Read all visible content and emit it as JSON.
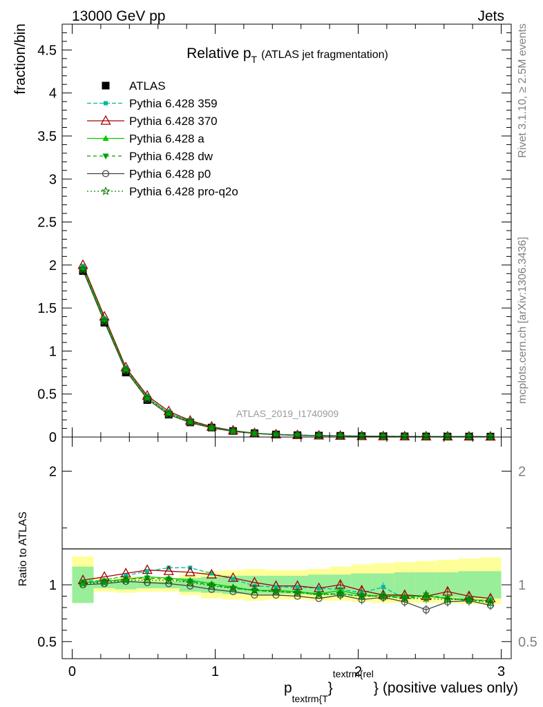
{
  "header": {
    "left": "13000 GeV pp",
    "right": "Jets"
  },
  "side_labels": {
    "rivet": "Rivet 3.1.10, ≥ 2.5M events",
    "mcplots": "mcplots.cern.ch [arXiv:1306.3436]"
  },
  "chart_data": {
    "type": "line",
    "title_main": "Relative p",
    "title_sub": "T",
    "title_extra": "(ATLAS jet fragmentation)",
    "watermark": "ATLAS_2019_I1740909",
    "ylabel": "fraction/bin",
    "ratio_ylabel": "Ratio to ATLAS",
    "xlabel_p": "p",
    "xlabel_sub": "textrm{T",
    "xlabel_brace1": "}",
    "xlabel_sup": "textrm{rel",
    "xlabel_brace2": "}",
    "xlabel_rest": "(positive values only)",
    "xlim": [
      -0.07,
      3.07
    ],
    "ylim": [
      0,
      4.8
    ],
    "ratio_ylim": [
      0.35,
      2.3
    ],
    "xticks": [
      0,
      1,
      2,
      3
    ],
    "yticks": [
      0,
      0.5,
      1,
      1.5,
      2,
      2.5,
      3,
      3.5,
      4,
      4.5
    ],
    "ratio_yticks": [
      0.5,
      1,
      2
    ],
    "x": [
      0.075,
      0.225,
      0.375,
      0.525,
      0.675,
      0.825,
      0.975,
      1.125,
      1.275,
      1.425,
      1.575,
      1.725,
      1.875,
      2.025,
      2.175,
      2.325,
      2.475,
      2.625,
      2.775,
      2.925
    ],
    "bin_edges": [
      0,
      0.15,
      0.3,
      0.45,
      0.6,
      0.75,
      0.9,
      1.05,
      1.2,
      1.35,
      1.5,
      1.65,
      1.8,
      1.95,
      2.1,
      2.25,
      2.4,
      2.55,
      2.7,
      2.85,
      3.0
    ],
    "band_inner": [
      [
        0.84,
        1.16
      ],
      [
        0.97,
        1.03
      ],
      [
        0.96,
        1.04
      ],
      [
        0.97,
        1.03
      ],
      [
        0.97,
        1.03
      ],
      [
        0.94,
        1.06
      ],
      [
        0.93,
        1.07
      ],
      [
        0.92,
        1.08
      ],
      [
        0.92,
        1.08
      ],
      [
        0.92,
        1.08
      ],
      [
        0.92,
        1.08
      ],
      [
        0.91,
        1.09
      ],
      [
        0.91,
        1.09
      ],
      [
        0.9,
        1.1
      ],
      [
        0.9,
        1.1
      ],
      [
        0.89,
        1.11
      ],
      [
        0.89,
        1.11
      ],
      [
        0.89,
        1.11
      ],
      [
        0.88,
        1.12
      ],
      [
        0.88,
        1.12
      ]
    ],
    "band_outer": [
      [
        0.84,
        1.25
      ],
      [
        0.94,
        1.06
      ],
      [
        0.93,
        1.07
      ],
      [
        0.94,
        1.06
      ],
      [
        0.94,
        1.06
      ],
      [
        0.91,
        1.09
      ],
      [
        0.88,
        1.12
      ],
      [
        0.87,
        1.13
      ],
      [
        0.86,
        1.14
      ],
      [
        0.87,
        1.13
      ],
      [
        0.87,
        1.13
      ],
      [
        0.86,
        1.14
      ],
      [
        0.86,
        1.16
      ],
      [
        0.85,
        1.18
      ],
      [
        0.84,
        1.19
      ],
      [
        0.84,
        1.2
      ],
      [
        0.84,
        1.21
      ],
      [
        0.84,
        1.22
      ],
      [
        0.83,
        1.23
      ],
      [
        0.83,
        1.24
      ]
    ],
    "data": {
      "name": "ATLAS",
      "values": [
        1.93,
        1.33,
        0.75,
        0.43,
        0.26,
        0.17,
        0.11,
        0.07,
        0.045,
        0.03,
        0.022,
        0.017,
        0.014,
        0.011,
        0.009,
        0.008,
        0.007,
        0.006,
        0.006,
        0.005
      ]
    },
    "series": [
      {
        "name": "Pythia 6.428 359",
        "color": "#00b8a0",
        "dash": "6,3",
        "marker": "square-small",
        "values": [
          1.99,
          1.38,
          0.81,
          0.48,
          0.3,
          0.195,
          0.12,
          0.076,
          0.045,
          0.031,
          0.023,
          0.018,
          0.015,
          0.011,
          0.009,
          0.0075,
          0.0064,
          0.0055,
          0.0052,
          0.0045
        ],
        "ratio": [
          1.03,
          1.04,
          1.08,
          1.12,
          1.15,
          1.15,
          1.1,
          1.05,
          0.99,
          0.98,
          0.98,
          0.97,
          0.96,
          0.93,
          0.98,
          0.88,
          0.9,
          0.88,
          0.86,
          0.87
        ]
      },
      {
        "name": "Pythia 6.428 370",
        "color": "#a00000",
        "dash": "",
        "marker": "triangle-open",
        "values": [
          2.0,
          1.4,
          0.81,
          0.48,
          0.3,
          0.19,
          0.12,
          0.075,
          0.045,
          0.03,
          0.022,
          0.017,
          0.014,
          0.0105,
          0.0083,
          0.0073,
          0.0064,
          0.0058,
          0.0053,
          0.0044
        ],
        "ratio": [
          1.04,
          1.07,
          1.1,
          1.13,
          1.12,
          1.11,
          1.09,
          1.06,
          1.02,
          0.99,
          0.99,
          0.97,
          1.0,
          0.95,
          0.91,
          0.91,
          0.9,
          0.94,
          0.9,
          0.88
        ]
      },
      {
        "name": "Pythia 6.428 a",
        "color": "#00cc00",
        "dash": "",
        "marker": "triangle-solid",
        "values": [
          1.97,
          1.37,
          0.79,
          0.46,
          0.28,
          0.18,
          0.11,
          0.071,
          0.043,
          0.029,
          0.021,
          0.016,
          0.013,
          0.01,
          0.0082,
          0.0071,
          0.0062,
          0.0053,
          0.005,
          0.0042
        ],
        "ratio": [
          1.02,
          1.03,
          1.05,
          1.07,
          1.06,
          1.04,
          1.01,
          0.98,
          0.95,
          0.95,
          0.94,
          0.92,
          0.95,
          0.91,
          0.9,
          0.9,
          0.9,
          0.88,
          0.87,
          0.86
        ]
      },
      {
        "name": "Pythia 6.428 dw",
        "color": "#00a000",
        "dash": "5,4",
        "marker": "triangle-down",
        "values": [
          1.96,
          1.36,
          0.79,
          0.46,
          0.28,
          0.18,
          0.11,
          0.07,
          0.043,
          0.029,
          0.021,
          0.016,
          0.013,
          0.0099,
          0.0081,
          0.007,
          0.0063,
          0.0053,
          0.005,
          0.0042
        ],
        "ratio": [
          1.02,
          1.03,
          1.05,
          1.06,
          1.05,
          1.03,
          1.0,
          0.97,
          0.95,
          0.94,
          0.93,
          0.92,
          0.92,
          0.9,
          0.9,
          0.88,
          0.91,
          0.88,
          0.87,
          0.85
        ]
      },
      {
        "name": "Pythia 6.428 p0",
        "color": "#404040",
        "dash": "",
        "marker": "circle-open",
        "values": [
          1.94,
          1.34,
          0.77,
          0.44,
          0.26,
          0.168,
          0.105,
          0.066,
          0.041,
          0.027,
          0.02,
          0.015,
          0.0128,
          0.0096,
          0.008,
          0.0069,
          0.0055,
          0.0051,
          0.0049,
          0.0041
        ],
        "ratio": [
          1.0,
          1.01,
          1.03,
          1.02,
          1.01,
          0.99,
          0.96,
          0.94,
          0.91,
          0.91,
          0.9,
          0.88,
          0.91,
          0.87,
          0.89,
          0.85,
          0.78,
          0.85,
          0.86,
          0.82
        ]
      },
      {
        "name": "Pythia 6.428 pro-q2o",
        "color": "#008000",
        "dash": "2,3",
        "marker": "star-open",
        "values": [
          1.95,
          1.35,
          0.78,
          0.45,
          0.27,
          0.176,
          0.108,
          0.069,
          0.043,
          0.028,
          0.021,
          0.016,
          0.013,
          0.0099,
          0.0082,
          0.007,
          0.0061,
          0.0053,
          0.005,
          0.0042
        ],
        "ratio": [
          1.01,
          1.02,
          1.04,
          1.04,
          1.04,
          1.02,
          0.99,
          0.97,
          0.95,
          0.94,
          0.93,
          0.91,
          0.92,
          0.9,
          0.9,
          0.88,
          0.88,
          0.87,
          0.87,
          0.84
        ]
      }
    ]
  }
}
